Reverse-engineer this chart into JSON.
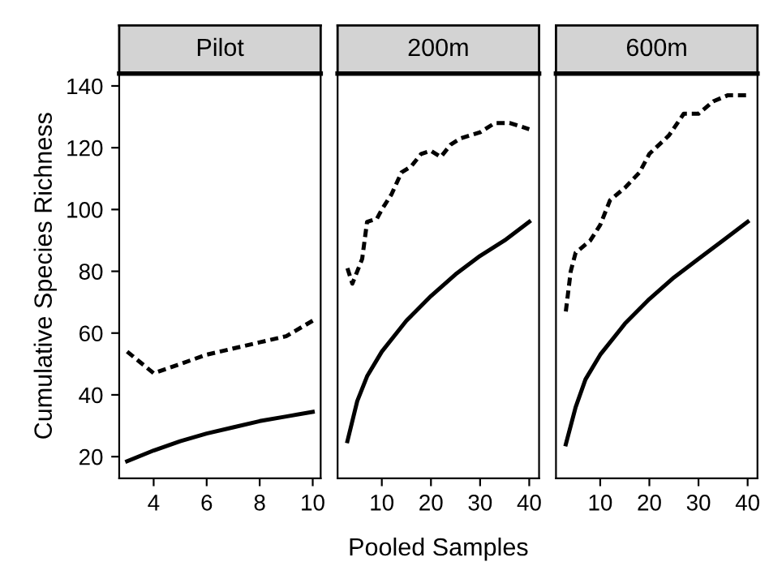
{
  "chart_data": [
    {
      "type": "line",
      "title": "Pilot",
      "ylabel": "Cumulative Species Richness",
      "xlim": [
        2.7,
        10.3
      ],
      "xticks": [
        4,
        6,
        8,
        10
      ],
      "ylim": [
        13,
        144
      ],
      "yticks": [
        20,
        40,
        60,
        80,
        100,
        120,
        140
      ],
      "grid": false,
      "series": [
        {
          "color": "#000000",
          "line_style": "solid",
          "x": [
            3,
            4,
            5,
            6,
            7,
            8,
            9,
            10
          ],
          "values": [
            18.5,
            22,
            25,
            27.5,
            29.5,
            31.5,
            33,
            34.5
          ]
        },
        {
          "color": "#000000",
          "line_style": "dashed",
          "x": [
            3,
            4,
            5,
            6,
            7,
            8,
            9,
            10
          ],
          "values": [
            54,
            47,
            50,
            53,
            55,
            57,
            59,
            64
          ]
        }
      ]
    },
    {
      "type": "line",
      "title": "200m",
      "xlabel": "Pooled Samples",
      "xlim": [
        1,
        42
      ],
      "xticks": [
        10,
        20,
        30,
        40
      ],
      "ylim": [
        13,
        144
      ],
      "tick_labels": "x",
      "grid": false,
      "series": [
        {
          "color": "#000000",
          "line_style": "solid",
          "x": [
            3,
            5,
            7,
            10,
            15,
            20,
            25,
            30,
            35,
            40
          ],
          "values": [
            25,
            38,
            46,
            54,
            64,
            72,
            79,
            85,
            90,
            96
          ]
        },
        {
          "color": "#000000",
          "line_style": "dashed",
          "x": [
            3,
            4,
            5,
            6,
            7,
            9,
            10,
            12,
            14,
            16,
            18,
            20,
            22,
            24,
            26,
            30,
            33,
            36,
            40
          ],
          "values": [
            81,
            76,
            80,
            84,
            96,
            97,
            100,
            105,
            112,
            114,
            118,
            119,
            117,
            121,
            123,
            125,
            128,
            128,
            126
          ]
        }
      ]
    },
    {
      "type": "line",
      "title": "600m",
      "xlim": [
        1,
        42
      ],
      "xticks": [
        10,
        20,
        30,
        40
      ],
      "ylim": [
        13,
        144
      ],
      "tick_labels": "x",
      "grid": false,
      "series": [
        {
          "color": "#000000",
          "line_style": "solid",
          "x": [
            3,
            5,
            7,
            10,
            15,
            20,
            25,
            30,
            35,
            40
          ],
          "values": [
            24,
            36,
            45,
            53,
            63,
            71,
            78,
            84,
            90,
            96
          ]
        },
        {
          "color": "#000000",
          "line_style": "dashed",
          "x": [
            3,
            4,
            5,
            8,
            10,
            12,
            15,
            18,
            20,
            24,
            27,
            30,
            33,
            36,
            40
          ],
          "values": [
            67,
            80,
            86,
            90,
            95,
            103,
            107,
            112,
            118,
            124,
            131,
            131,
            135,
            137,
            137
          ]
        }
      ]
    }
  ]
}
